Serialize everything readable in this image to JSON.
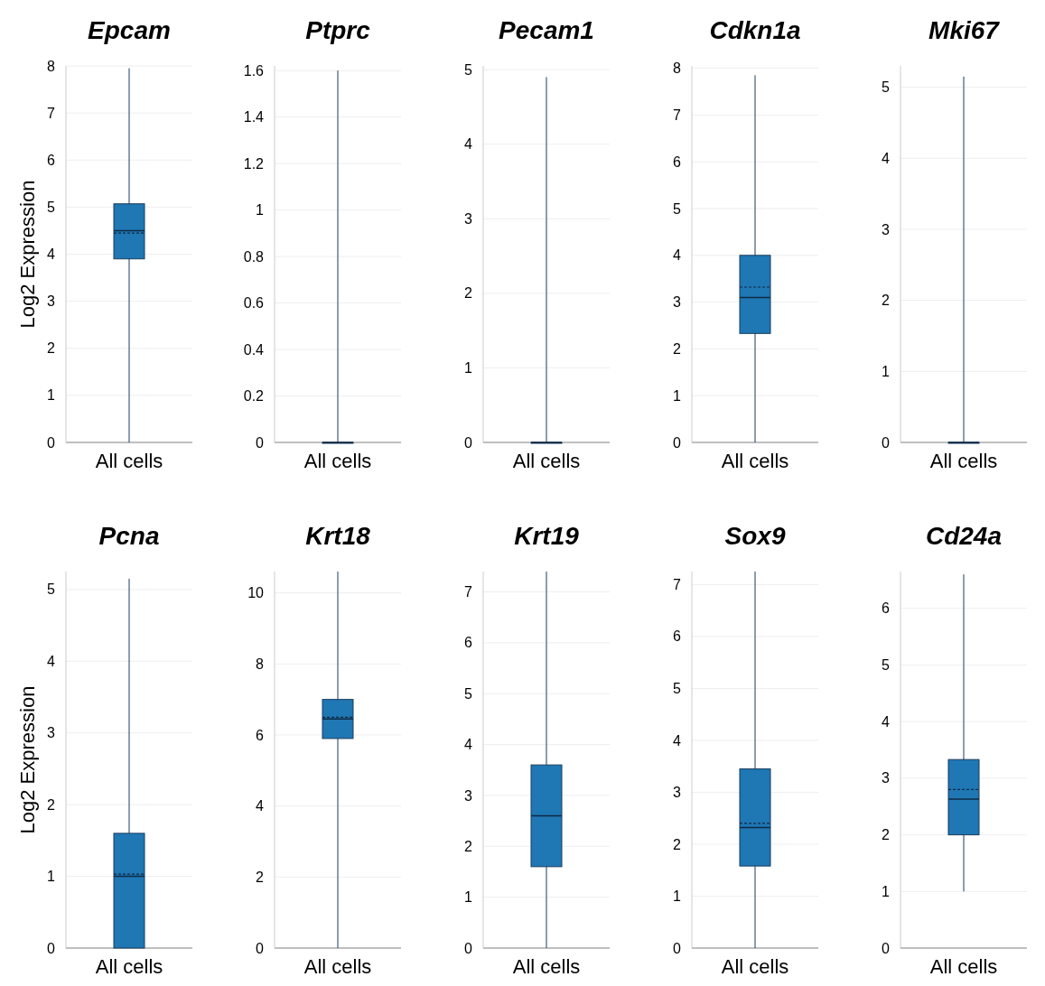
{
  "chart_data": [
    {
      "type": "box",
      "title": "Epcam",
      "ylabel": "Log2 Expression",
      "categories": [
        "All cells"
      ],
      "color": "#1f77b4",
      "ylim": [
        0,
        8
      ],
      "yticks": [
        0,
        1,
        2,
        3,
        4,
        5,
        6,
        7,
        8
      ],
      "grid": "y",
      "boxes": [
        {
          "low": 0,
          "q1": 3.9,
          "median": 4.5,
          "q3": 5.07,
          "high": 7.95,
          "mean": 4.45
        }
      ]
    },
    {
      "type": "box",
      "title": "Ptprc",
      "categories": [
        "All cells"
      ],
      "color": "#1f77b4",
      "ylim": [
        0,
        1.62
      ],
      "yticks": [
        0,
        0.2,
        0.4,
        0.6,
        0.8,
        1,
        1.2,
        1.4,
        1.6
      ],
      "grid": "y",
      "boxes": [
        {
          "low": 0,
          "q1": 0,
          "median": 0,
          "q3": 0,
          "high": 1.6
        }
      ]
    },
    {
      "type": "box",
      "title": "Pecam1",
      "categories": [
        "All cells"
      ],
      "color": "#1f77b4",
      "ylim": [
        0,
        5.05
      ],
      "yticks": [
        0,
        1,
        2,
        3,
        4,
        5
      ],
      "grid": "y",
      "boxes": [
        {
          "low": 0,
          "q1": 0,
          "median": 0,
          "q3": 0,
          "high": 4.9
        }
      ]
    },
    {
      "type": "box",
      "title": "Cdkn1a",
      "categories": [
        "All cells"
      ],
      "color": "#1f77b4",
      "ylim": [
        0,
        8.05
      ],
      "yticks": [
        0,
        1,
        2,
        3,
        4,
        5,
        6,
        7,
        8
      ],
      "grid": "y",
      "boxes": [
        {
          "low": 0,
          "q1": 2.33,
          "median": 3.1,
          "q3": 4.0,
          "high": 7.85,
          "mean": 3.32
        }
      ]
    },
    {
      "type": "box",
      "title": "Mki67",
      "categories": [
        "All cells"
      ],
      "color": "#1f77b4",
      "ylim": [
        0,
        5.3
      ],
      "yticks": [
        0,
        1,
        2,
        3,
        4,
        5
      ],
      "grid": "y",
      "boxes": [
        {
          "low": 0,
          "q1": 0,
          "median": 0,
          "q3": 0,
          "high": 5.15
        }
      ]
    },
    {
      "type": "box",
      "title": "Pcna",
      "ylabel": "Log2 Expression",
      "categories": [
        "All cells"
      ],
      "color": "#1f77b4",
      "ylim": [
        0,
        5.25
      ],
      "yticks": [
        0,
        1,
        2,
        3,
        4,
        5
      ],
      "grid": "y",
      "boxes": [
        {
          "low": 0,
          "q1": 0,
          "median": 1.0,
          "q3": 1.6,
          "high": 5.15,
          "mean": 1.03
        }
      ]
    },
    {
      "type": "box",
      "title": "Krt18",
      "categories": [
        "All cells"
      ],
      "color": "#1f77b4",
      "ylim": [
        0,
        10.6
      ],
      "yticks": [
        0,
        2,
        4,
        6,
        8,
        10
      ],
      "grid": "y",
      "boxes": [
        {
          "low": 0,
          "q1": 5.9,
          "median": 6.45,
          "q3": 7.0,
          "high": 10.6,
          "mean": 6.5
        }
      ]
    },
    {
      "type": "box",
      "title": "Krt19",
      "categories": [
        "All cells"
      ],
      "color": "#1f77b4",
      "ylim": [
        0,
        7.4
      ],
      "yticks": [
        0,
        1,
        2,
        3,
        4,
        5,
        6,
        7
      ],
      "grid": "y",
      "boxes": [
        {
          "low": 0,
          "q1": 1.6,
          "median": 2.6,
          "q3": 3.6,
          "high": 7.4
        }
      ]
    },
    {
      "type": "box",
      "title": "Sox9",
      "categories": [
        "All cells"
      ],
      "color": "#1f77b4",
      "ylim": [
        0,
        7.25
      ],
      "yticks": [
        0,
        1,
        2,
        3,
        4,
        5,
        6,
        7
      ],
      "grid": "y",
      "boxes": [
        {
          "low": 0,
          "q1": 1.58,
          "median": 2.32,
          "q3": 3.45,
          "high": 7.25,
          "mean": 2.4
        }
      ]
    },
    {
      "type": "box",
      "title": "Cd24a",
      "categories": [
        "All cells"
      ],
      "color": "#1f77b4",
      "ylim": [
        0,
        6.65
      ],
      "yticks": [
        0,
        1,
        2,
        3,
        4,
        5,
        6
      ],
      "grid": "y",
      "boxes": [
        {
          "low": 1.0,
          "q1": 2.0,
          "median": 2.63,
          "q3": 3.33,
          "high": 6.6,
          "mean": 2.8
        }
      ]
    }
  ]
}
